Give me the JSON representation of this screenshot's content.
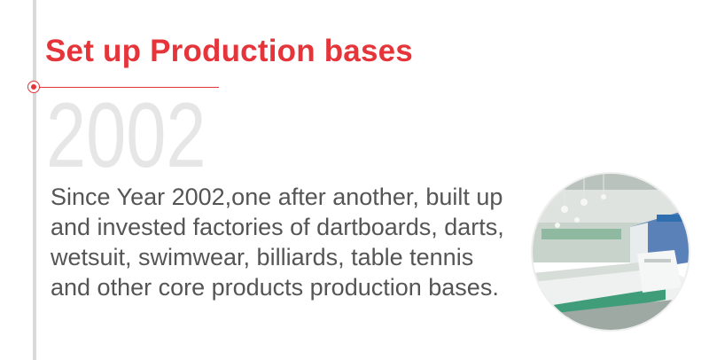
{
  "section": {
    "title": "Set up Production bases",
    "year": "2002",
    "description": "Since Year 2002,one after another, built up and invested factories of dartboards, darts, wetsuit, swimwear, billiards, table tennis and other core products production bases."
  },
  "colors": {
    "accent": "#e5353a",
    "timeline": "#d9d9d9",
    "year": "#e6e6e6",
    "body_text": "#555555"
  },
  "image": {
    "subject": "factory-production-floor-photo"
  }
}
